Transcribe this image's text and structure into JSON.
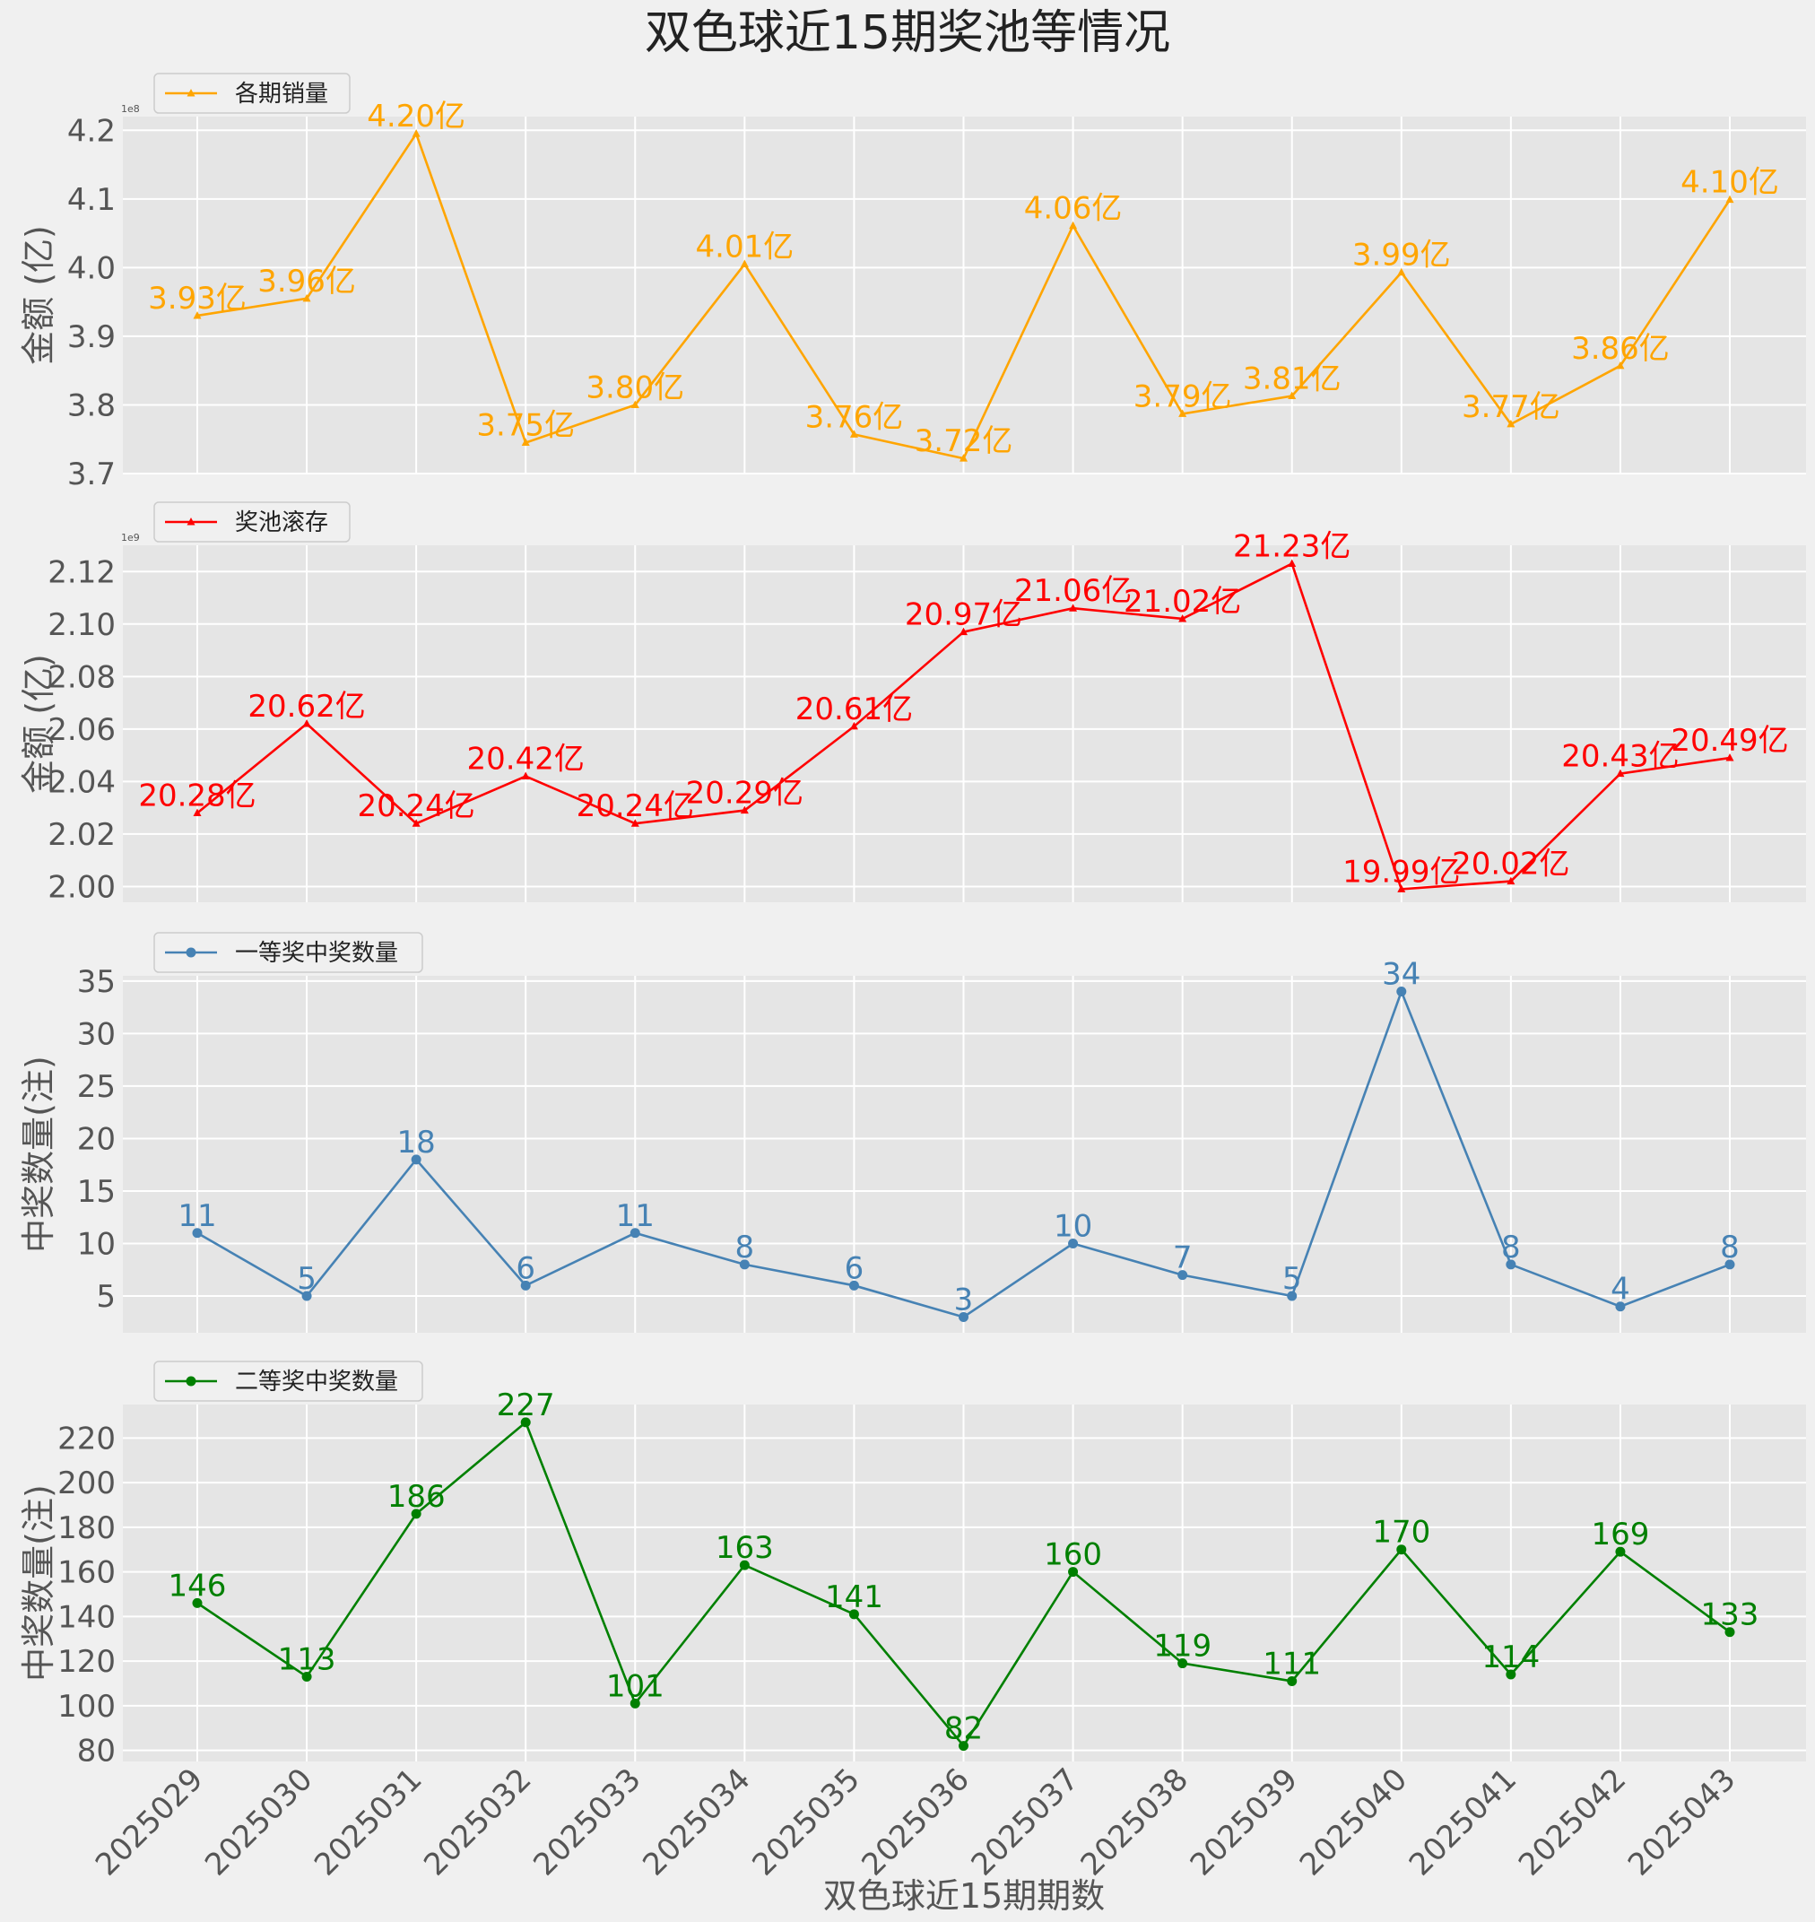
{
  "chart_data": {
    "type": "line",
    "title": "双色球近15期奖池等情况",
    "xlabel": "双色球近15期期数",
    "categories": [
      "2025029",
      "2025030",
      "2025031",
      "2025032",
      "2025033",
      "2025034",
      "2025035",
      "2025036",
      "2025037",
      "2025038",
      "2025039",
      "2025040",
      "2025041",
      "2025042",
      "2025043"
    ],
    "panels": [
      {
        "name": "各期销量",
        "color": "#FFA500",
        "marker": "triangle",
        "ylabel": "金额 (亿)",
        "scale_note": "1e8",
        "ylim": [
          3.7,
          4.22
        ],
        "yticks": [
          3.7,
          3.8,
          3.9,
          4.0,
          4.1,
          4.2
        ],
        "ytick_labels": [
          "3.7",
          "3.8",
          "3.9",
          "4.0",
          "4.1",
          "4.2"
        ],
        "values": [
          3.93,
          3.955,
          4.195,
          3.745,
          3.8,
          4.005,
          3.757,
          3.722,
          4.061,
          3.787,
          3.813,
          3.993,
          3.772,
          3.857,
          4.099
        ],
        "labels": [
          "3.93亿",
          "3.96亿",
          "4.20亿",
          "3.75亿",
          "3.80亿",
          "4.01亿",
          "3.76亿",
          "3.72亿",
          "4.06亿",
          "3.79亿",
          "3.81亿",
          "3.99亿",
          "3.77亿",
          "3.86亿",
          "4.10亿"
        ]
      },
      {
        "name": "奖池滚存",
        "color": "#FF0000",
        "marker": "triangle",
        "ylabel": "金额 (亿)",
        "scale_note": "1e9",
        "ylim": [
          1.994,
          2.13
        ],
        "yticks": [
          2.0,
          2.02,
          2.04,
          2.06,
          2.08,
          2.1,
          2.12
        ],
        "ytick_labels": [
          "2.00",
          "2.02",
          "2.04",
          "2.06",
          "2.08",
          "2.10",
          "2.12"
        ],
        "values": [
          2.028,
          2.062,
          2.024,
          2.042,
          2.024,
          2.029,
          2.061,
          2.097,
          2.106,
          2.102,
          2.123,
          1.999,
          2.002,
          2.043,
          2.049
        ],
        "labels": [
          "20.28亿",
          "20.62亿",
          "20.24亿",
          "20.42亿",
          "20.24亿",
          "20.29亿",
          "20.61亿",
          "20.97亿",
          "21.06亿",
          "21.02亿",
          "21.23亿",
          "19.99亿",
          "20.02亿",
          "20.43亿",
          "20.49亿"
        ]
      },
      {
        "name": "一等奖中奖数量",
        "color": "#4682B4",
        "marker": "circle",
        "ylabel": "中奖数量(注)",
        "ylim": [
          1.5,
          35.5
        ],
        "yticks": [
          5,
          10,
          15,
          20,
          25,
          30,
          35
        ],
        "ytick_labels": [
          "5",
          "10",
          "15",
          "20",
          "25",
          "30",
          "35"
        ],
        "values": [
          11,
          5,
          18,
          6,
          11,
          8,
          6,
          3,
          10,
          7,
          5,
          34,
          8,
          4,
          8
        ],
        "labels": [
          "11",
          "5",
          "18",
          "6",
          "11",
          "8",
          "6",
          "3",
          "10",
          "7",
          "5",
          "34",
          "8",
          "4",
          "8"
        ]
      },
      {
        "name": "二等奖中奖数量",
        "color": "#008000",
        "marker": "circle",
        "ylabel": "中奖数量(注)",
        "ylim": [
          75,
          235
        ],
        "yticks": [
          80,
          100,
          120,
          140,
          160,
          180,
          200,
          220
        ],
        "ytick_labels": [
          "80",
          "100",
          "120",
          "140",
          "160",
          "180",
          "200",
          "220"
        ],
        "values": [
          146,
          113,
          186,
          227,
          101,
          163,
          141,
          82,
          160,
          119,
          111,
          170,
          114,
          169,
          133
        ],
        "labels": [
          "146",
          "113",
          "186",
          "227",
          "101",
          "163",
          "141",
          "82",
          "160",
          "119",
          "111",
          "170",
          "114",
          "169",
          "133"
        ]
      }
    ]
  }
}
